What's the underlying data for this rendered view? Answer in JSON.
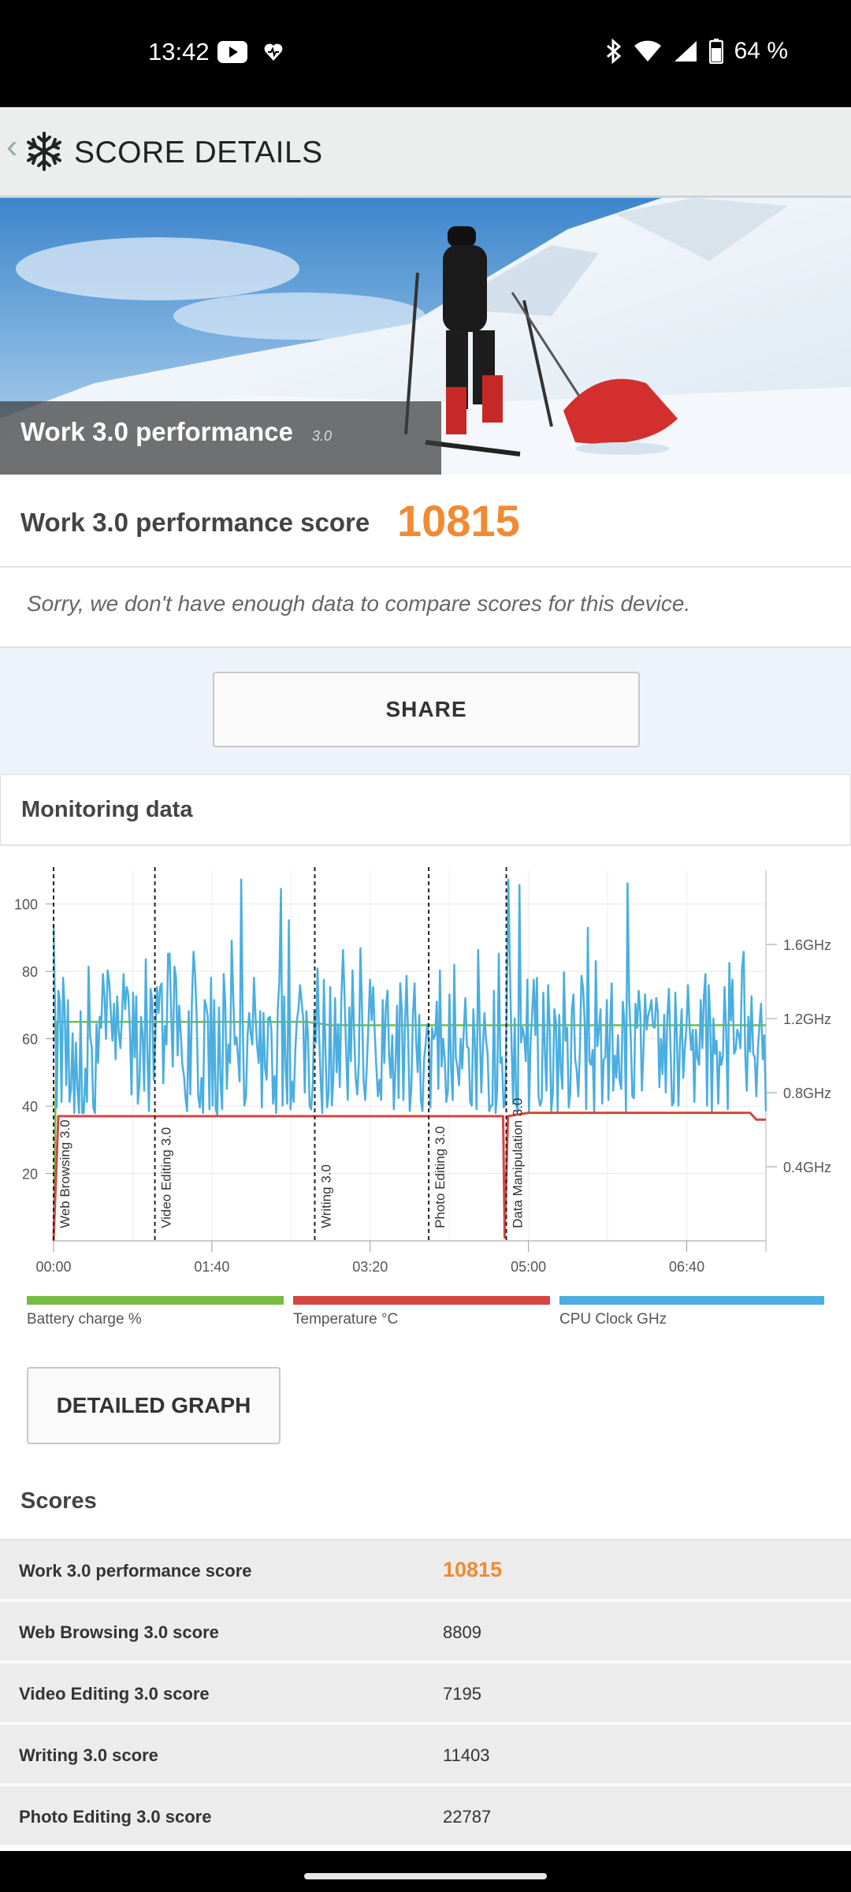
{
  "status_bar": {
    "time": "13:42",
    "battery": "64 %"
  },
  "app_bar": {
    "title": "SCORE DETAILS"
  },
  "hero": {
    "title": "Work 3.0 performance",
    "version": "3.0"
  },
  "summary": {
    "score_label": "Work 3.0 performance score",
    "score_value": "10815",
    "compare_note": "Sorry, we don't have enough data to compare scores for this device."
  },
  "share_label": "SHARE",
  "monitoring": {
    "title": "Monitoring data",
    "detailed_graph_label": "DETAILED GRAPH"
  },
  "chart_data": {
    "type": "line",
    "x_ticks": [
      "00:00",
      "01:40",
      "03:20",
      "05:00",
      "06:40"
    ],
    "y_left_ticks": [
      "20",
      "40",
      "60",
      "80",
      "100"
    ],
    "y_left_range": [
      0,
      110
    ],
    "y_right_ticks": [
      "0.4GHz",
      "0.8GHz",
      "1.2GHz",
      "1.6GHz"
    ],
    "y_right_range_ghz": [
      0,
      2.0
    ],
    "x_range_seconds": [
      0,
      450
    ],
    "grid": true,
    "legend_position": "bottom",
    "markers": [
      {
        "label": "Web Browsing 3.0",
        "t": 0
      },
      {
        "label": "Video Editing 3.0",
        "t": 64
      },
      {
        "label": "Writing 3.0",
        "t": 165
      },
      {
        "label": "Photo Editing 3.0",
        "t": 237
      },
      {
        "label": "Data Manipulation 3.0",
        "t": 286
      }
    ],
    "series": [
      {
        "name": "Battery charge %",
        "color": "#76bc43",
        "points": [
          [
            0,
            2
          ],
          [
            2,
            65
          ],
          [
            160,
            65
          ],
          [
            175,
            64
          ],
          [
            290,
            64
          ],
          [
            450,
            64
          ]
        ]
      },
      {
        "name": "Temperature °C",
        "color": "#d64540",
        "points": [
          [
            0,
            0
          ],
          [
            3,
            37
          ],
          [
            284,
            37
          ],
          [
            285,
            1
          ],
          [
            287,
            37
          ],
          [
            300,
            38
          ],
          [
            440,
            38
          ],
          [
            444,
            36
          ],
          [
            450,
            36
          ]
        ]
      },
      {
        "name": "CPU Clock GHz",
        "color": "#4aaee0",
        "values": [
          1.71,
          1.22,
          0.72,
          1.35,
          1.29,
          0.75,
          1.42,
          1.25,
          0.84,
          1.3,
          0.75,
          0.82,
          1.12,
          0.69,
          1.07,
          0.82,
          0.69,
          1.24,
          0.69,
          0.69,
          0.93,
          0.75,
          1.48,
          1.1,
          1.05,
          0.72,
          0.69,
          1.17,
          0.96,
          1.21,
          1.15,
          1.44,
          1.32,
          1.09,
          1.46,
          1.4,
          1.24,
          1.08,
          1.28,
          0.98,
          1.32,
          1.13,
          1.04,
          1.21,
          1.44,
          1.25,
          1.37,
          1.33,
          1.14,
          0.79,
          1.34,
          0.99,
          1.32,
          0.74,
          0.85,
          1.21,
          1.11,
          0.81,
          1.52,
          1.01,
          0.7,
          1.36,
          1.3,
          0.87,
          1.1,
          1.37,
          1.23,
          1.37,
          1.39,
          0.85,
          1.16,
          1.06,
          1.55,
          1.55,
          1.21,
          0.94,
          1.48,
          1.42,
          1.0,
          1.27,
          1.12,
          0.95,
          0.89,
          0.77,
          0.7,
          1.24,
          0.79,
          1.3,
          1.56,
          1.44,
          1.21,
          0.78,
          0.72,
          0.88,
          0.69,
          1.3,
          1.27,
          1.21,
          0.71,
          1.42,
          0.73,
          1.3,
          0.71,
          0.68,
          1.26,
          0.86,
          0.71,
          1.44,
          1.28,
          0.82,
          1.06,
          0.96,
          1.62,
          1.32,
          1.06,
          1.1,
          0.99,
          0.86,
          1.95,
          1.16,
          0.73,
          0.78,
          1.11,
          1.23,
          1.12,
          1.06,
          1.42,
          1.21,
          1.05,
          0.96,
          1.24,
          0.72,
          1.23,
          0.93,
          0.87,
          1.2,
          1.21,
          1.14,
          0.74,
          0.89,
          0.69,
          1.25,
          1.4,
          1.9,
          0.73,
          1.32,
          0.93,
          0.74,
          1.73,
          0.71,
          0.86,
          0.75,
          1.02,
          1.19,
          1.25,
          1.38,
          1.29,
          1.2,
          0.8,
          1.24,
          1.1,
          0.73,
          0.71,
          0.84,
          1.24,
          1.07,
          1.47,
          1.11,
          0.86,
          0.69,
          1.41,
          1.02,
          0.72,
          0.8,
          1.37,
          0.73,
          0.88,
          1.31,
          0.91,
          1.17,
          0.83,
          1.3,
          1.57,
          1.32,
          1.02,
          0.76,
          1.26,
          0.97,
          1.46,
          1.12,
          0.88,
          0.79,
          0.96,
          1.58,
          1.24,
          0.86,
          0.76,
          0.94,
          1.16,
          1.41,
          1.19,
          1.37,
          1.12,
          0.94,
          0.78,
          0.87,
          0.76,
          1.3,
          0.96,
          1.26,
          1.35,
          1.0,
          0.88,
          1.11,
          0.71,
          0.93,
          1.27,
          0.77,
          1.39,
          1.25,
          0.76,
          1.16,
          1.43,
          1.09,
          0.7,
          0.82,
          1.21,
          1.39,
          1.08,
          0.91,
          1.22,
          0.76,
          0.7,
          0.98,
          1.06,
          1.17,
          1.09,
          0.72,
          1.15,
          1.09,
          1.11,
          1.29,
          0.82,
          1.46,
          0.94,
          1.09,
          0.98,
          0.75,
          0.81,
          1.33,
          0.93,
          0.76,
          1.49,
          0.99,
          0.94,
          0.84,
          1.09,
          0.93,
          1.14,
          1.31,
          1.05,
          1.04,
          0.75,
          0.73,
          1.25,
          1.06,
          0.71,
          1.57,
          1.17,
          0.8,
          1.04,
          1.23,
          1.08,
          1.01,
          0.7,
          0.73,
          0.73,
          1.35,
          0.69,
          0.82,
          1.55,
          0.96,
          0.99,
          0.72,
          0.73,
          1.28,
          1.95,
          1.47,
          1.08,
          0.74,
          1.2,
          0.73,
          0.7,
          1.92,
          1.07,
          1.15,
          1.1,
          0.97,
          1.41,
          0.69,
          1.08,
          1.23,
          1.41,
          1.11,
          1.42,
          0.78,
          0.73,
          0.76,
          1.34,
          1.02,
          0.81,
          1.38,
          1.16,
          0.7,
          0.8,
          1.25,
          1.18,
          0.7,
          1.22,
          0.93,
          0.82,
          1.45,
          1.08,
          1.15,
          0.72,
          0.8,
          1.25,
          1.33,
          0.98,
          0.92,
          0.78,
          1.02,
          1.43,
          1.37,
          1.18,
          0.71,
          1.69,
          0.97,
          0.95,
          1.03,
          0.69,
          1.51,
          1.05,
          1.14,
          1.25,
          0.74,
          0.98,
          0.99,
          1.3,
          0.76,
          1.16,
          1.39,
          0.81,
          1.0,
          0.88,
          1.11,
          0.86,
          0.82,
          1.29,
          1.19,
          0.7,
          1.93,
          1.3,
          1.1,
          0.78,
          0.77,
          1.28,
          1.15,
          1.35,
          1.23,
          0.81,
          1.02,
          1.33,
          1.14,
          1.22,
          1.25,
          1.3,
          1.16,
          1.15,
          1.31,
          1.24,
          0.83,
          1.09,
          0.9,
          1.22,
          0.8,
          1.21,
          1.36,
          1.05,
          0.73,
          0.75,
          1.34,
          1.11,
          0.73,
          1.07,
          1.25,
          0.88,
          1.04,
          1.15,
          1.38,
          1.16,
          1.03,
          1.14,
          0.75,
          1.14,
          0.99,
          0.95,
          1.3,
          1.04,
          1.32,
          1.44,
          0.73,
          1.38,
          1.19,
          0.69,
          1.2,
          1.01,
          1.08,
          0.74,
          1.02,
          0.95,
          1.0,
          1.37,
          1.13,
          0.71,
          1.5,
          1.19,
          1.41,
          1.01,
          1.03,
          1.14,
          1.11,
          1.04,
          1.47,
          1.56,
          1.0,
          0.81,
          1.21,
          1.02,
          1.32,
          1.01,
          0.99,
          0.78,
          1.04,
          1.17,
          1.28,
          0.98,
          1.11,
          0.7
        ]
      }
    ]
  },
  "legend": {
    "battery": {
      "label": "Battery charge %",
      "color": "#76bc43"
    },
    "temperature": {
      "label": "Temperature °C",
      "color": "#d64540"
    },
    "cpu": {
      "label": "CPU Clock GHz",
      "color": "#4aaee0"
    }
  },
  "scores": {
    "title": "Scores",
    "rows": [
      {
        "name": "Work 3.0 performance score",
        "value": "10815"
      },
      {
        "name": "Web Browsing 3.0 score",
        "value": "8809"
      },
      {
        "name": "Video Editing 3.0 score",
        "value": "7195"
      },
      {
        "name": "Writing 3.0 score",
        "value": "11403"
      },
      {
        "name": "Photo Editing 3.0 score",
        "value": "22787"
      }
    ]
  }
}
